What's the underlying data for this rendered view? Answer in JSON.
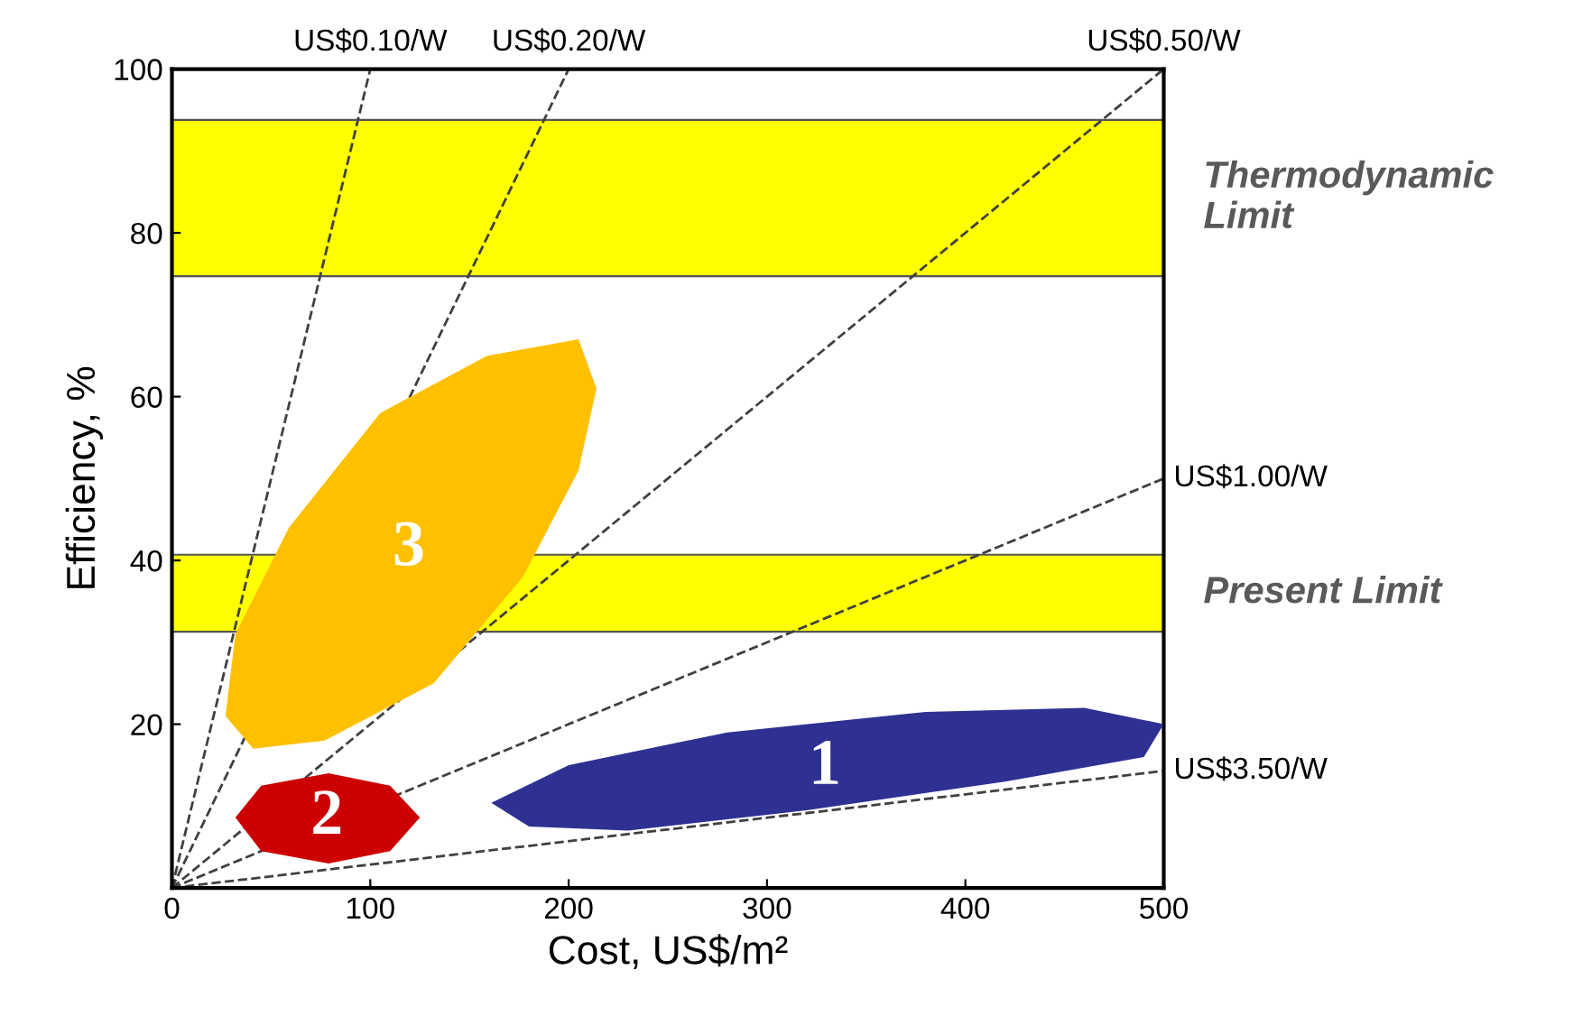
{
  "chart_data": {
    "type": "line",
    "xlabel": "Cost, US$/m²",
    "ylabel": "Efficiency, %",
    "xlim": [
      0,
      500
    ],
    "ylim": [
      0,
      100
    ],
    "xticks": [
      0,
      100,
      200,
      300,
      400,
      500
    ],
    "yticks": [
      20,
      40,
      60,
      80,
      100
    ],
    "grid": false,
    "legend": false,
    "line_style": "dashed",
    "marker": "none",
    "bands": [
      {
        "axis": "y",
        "from": 74.7,
        "to": 93.8,
        "label": "Thermodynamic Limit",
        "color": "#ffff00"
      },
      {
        "axis": "y",
        "from": 31.3,
        "to": 40.7,
        "label": "Present Limit",
        "color": "#ffff00"
      }
    ],
    "series": [
      {
        "type": "area",
        "name": "3",
        "color": "#ffc000",
        "x": [
          205,
          214,
          205,
          177,
          132,
          77,
          41,
          27,
          32,
          59,
          105,
          159
        ],
        "values": [
          67,
          61,
          51,
          38,
          25,
          18,
          17,
          21,
          31,
          44,
          58,
          65
        ]
      },
      {
        "type": "area",
        "name": "2",
        "color": "#cc0000",
        "x": [
          32,
          45,
          79,
          110,
          125,
          110,
          79,
          45
        ],
        "values": [
          8.6,
          12.5,
          14,
          12.5,
          8.6,
          4.5,
          3,
          4.5
        ]
      },
      {
        "type": "area",
        "name": "1",
        "color": "#2e3192",
        "x": [
          161,
          200,
          280,
          380,
          460,
          500,
          490,
          420,
          320,
          230,
          180
        ],
        "values": [
          10.4,
          15,
          19,
          21.5,
          22,
          20,
          16,
          13,
          9.5,
          7,
          7.5
        ]
      },
      {
        "name": "US$0.10/W",
        "color": "#404040",
        "x": [
          0,
          100
        ],
        "values": [
          0,
          100
        ]
      },
      {
        "name": "US$0.20/W",
        "color": "#404040",
        "x": [
          0,
          200
        ],
        "values": [
          0,
          100
        ]
      },
      {
        "name": "US$0.50/W",
        "color": "#404040",
        "x": [
          0,
          500
        ],
        "values": [
          0,
          100
        ]
      },
      {
        "name": "US$1.00/W",
        "color": "#404040",
        "x": [
          0,
          500
        ],
        "values": [
          0,
          50
        ]
      },
      {
        "name": "US$3.50/W",
        "color": "#404040",
        "x": [
          0,
          500
        ],
        "values": [
          0,
          14.3
        ]
      }
    ]
  }
}
